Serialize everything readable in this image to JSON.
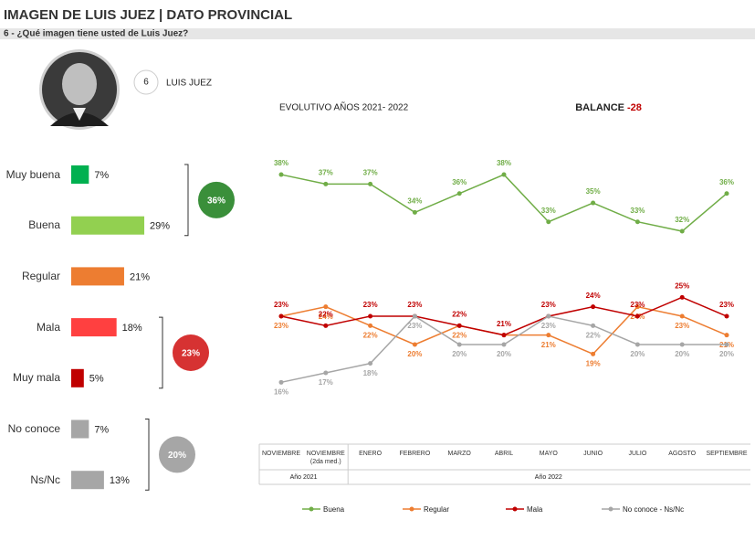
{
  "header": {
    "title": "IMAGEN DE LUIS JUEZ | DATO PROVINCIAL",
    "subtitle": "6 - ¿Qué imagen tiene usted de Luis Juez?"
  },
  "candidate": {
    "number": "6",
    "name": "LUIS JUEZ"
  },
  "chart_data": [
    {
      "type": "hbar",
      "categories": [
        "Muy buena",
        "Buena",
        "Regular",
        "Mala",
        "Muy mala",
        "No conoce",
        "Ns/Nc"
      ],
      "values": [
        7,
        29,
        21,
        18,
        5,
        7,
        13
      ],
      "value_labels": [
        "7%",
        "29%",
        "21%",
        "18%",
        "5%",
        "7%",
        "13%"
      ],
      "colors": [
        "#00b050",
        "#92d050",
        "#ed7d31",
        "#ff4040",
        "#c00000",
        "#a6a6a6",
        "#a6a6a6"
      ],
      "groups": [
        {
          "value": 36,
          "label": "36%",
          "color": "#3a8f3a",
          "from": 0,
          "to": 1
        },
        {
          "value": 23,
          "label": "23%",
          "color": "#d63232",
          "from": 3,
          "to": 4
        },
        {
          "value": 20,
          "label": "20%",
          "color": "#a6a6a6",
          "from": 5,
          "to": 6
        }
      ]
    },
    {
      "type": "line",
      "title": "EVOLUTIVO AÑOS 2021- 2022",
      "balance": {
        "label": "BALANCE",
        "value": -28
      },
      "categories": [
        "NOVIEMBRE",
        "NOVIEMBRE (2da med.)",
        "ENERO",
        "FEBRERO",
        "MARZO",
        "ABRIL",
        "MAYO",
        "JUNIO",
        "JULIO",
        "AGOSTO",
        "SEPTIEMBRE"
      ],
      "periods": [
        {
          "label": "Año 2021",
          "from": 0,
          "to": 1
        },
        {
          "label": "Año 2022",
          "from": 2,
          "to": 10
        }
      ],
      "series": [
        {
          "name": "Buena",
          "color": "#70ad47",
          "values": [
            38,
            37,
            37,
            34,
            36,
            38,
            33,
            35,
            33,
            32,
            36
          ],
          "value_labels": [
            "38%",
            "37%",
            "37%",
            "34%",
            "36%",
            "38%",
            "33%",
            "35%",
            "33%",
            "32%",
            "36%"
          ]
        },
        {
          "name": "Regular",
          "color": "#ed7d31",
          "values": [
            23,
            24,
            22,
            20,
            22,
            21,
            21,
            19,
            24,
            23,
            21
          ],
          "value_labels": [
            "23%",
            "24%",
            "22%",
            "20%",
            "22%",
            null,
            "21%",
            "19%",
            "24%",
            "23%",
            "21%"
          ]
        },
        {
          "name": "Mala",
          "color": "#c00000",
          "values": [
            23,
            22,
            23,
            23,
            22,
            21,
            23,
            24,
            23,
            25,
            23
          ],
          "value_labels": [
            "23%",
            "22%",
            "23%",
            "23%",
            "22%",
            "21%",
            "23%",
            "24%",
            "23%",
            "25%",
            "23%"
          ]
        },
        {
          "name": "No conoce - Ns/Nc",
          "color": "#a6a6a6",
          "values": [
            16,
            17,
            18,
            23,
            20,
            20,
            23,
            22,
            20,
            20,
            20
          ],
          "value_labels": [
            "16%",
            "17%",
            "18%",
            "23%",
            "20%",
            "20%",
            "23%",
            "22%",
            "20%",
            "20%",
            "20%"
          ]
        }
      ]
    }
  ]
}
